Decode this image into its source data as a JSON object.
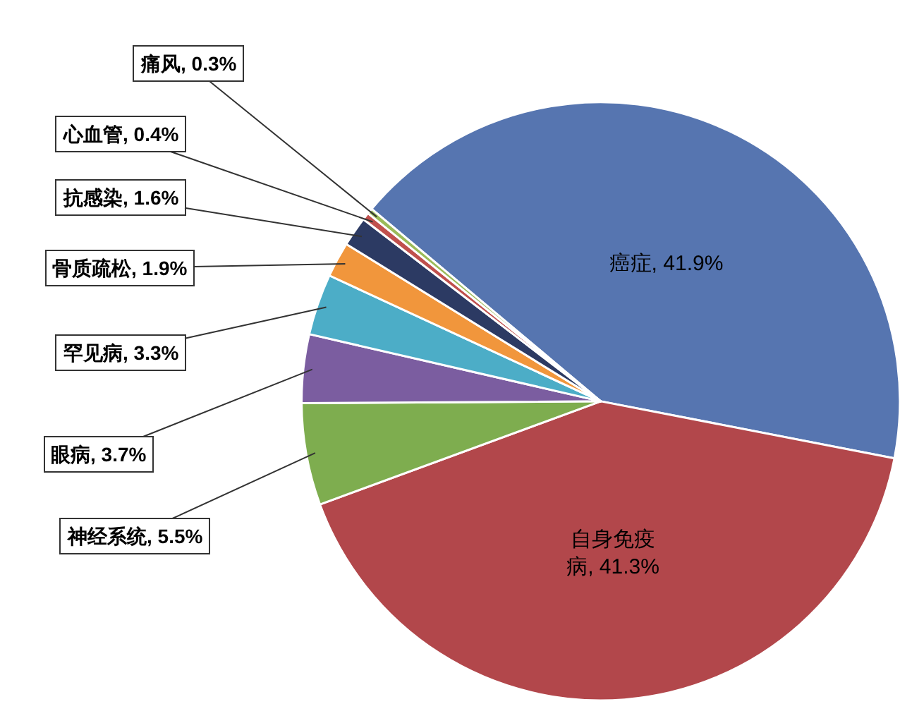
{
  "chart_data": {
    "type": "pie",
    "categories": [
      "癌症",
      "自身免疫病",
      "神经系统",
      "眼病",
      "罕见病",
      "骨质疏松",
      "抗感染",
      "心血管",
      "痛风"
    ],
    "values": [
      41.9,
      41.3,
      5.5,
      3.7,
      3.3,
      1.9,
      1.6,
      0.4,
      0.3
    ],
    "value_labels": [
      "41.9%",
      "41.3%",
      "5.5%",
      "3.7%",
      "3.3%",
      "1.9%",
      "1.6%",
      "0.4%",
      "0.3%"
    ],
    "colors": [
      "#5675b0",
      "#b2474b",
      "#7ead4f",
      "#7b5da0",
      "#4cadc7",
      "#f1963c",
      "#2c3a63",
      "#c0504d",
      "#9bbb59"
    ],
    "legend": false
  }
}
